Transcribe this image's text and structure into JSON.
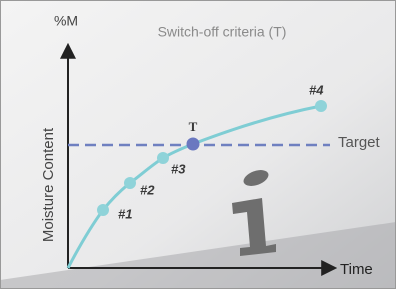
{
  "title": "Switch-off criteria (T)",
  "y_axis": {
    "unit": "%M",
    "label": "Moisture Content"
  },
  "x_axis": {
    "label": "Time"
  },
  "target": {
    "label": "Target",
    "point_label": "T"
  },
  "points": [
    {
      "label": "#1"
    },
    {
      "label": "#2"
    },
    {
      "label": "#3"
    },
    {
      "label": "#4"
    }
  ]
}
